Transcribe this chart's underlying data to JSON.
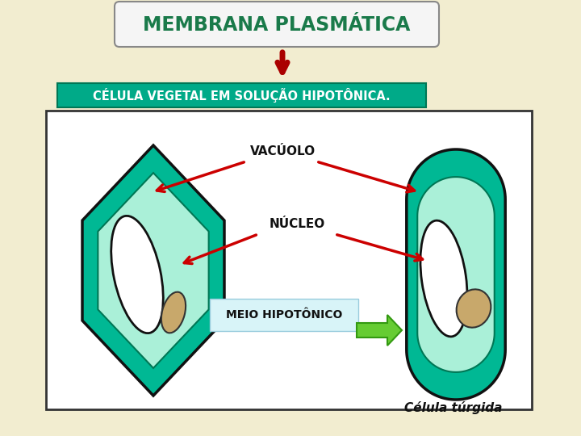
{
  "bg_color": "#F2EDD0",
  "title_text": "MEMBRANA PLASMÁTICA",
  "title_color": "#1a7a4a",
  "subtitle_text": "CÉLULA VEGETAL EM SOLUÇÃO HIPOTÔNICA.",
  "subtitle_color": "white",
  "subtitle_bg": "#00aa88",
  "panel_bg": "#ffffff",
  "panel_border": "#333333",
  "cell_outer_color": "#00b894",
  "cell_inner_color": "#aaf0d8",
  "vacuole_color": "#ffffff",
  "nucleus_color": "#C8A86B",
  "arrow_color": "#cc0000",
  "meio_arrow_color": "#55cc33",
  "meio_bg": "#d8f4f8",
  "label_vacuolo": "VACÚOLO",
  "label_nucleo": "NÚCLEO",
  "label_meio": "MEIO HIPOTÔNICO",
  "label_celula_turgida": "Célula túrgida",
  "title_box_color": "#f5f5f5",
  "title_box_border": "#888888"
}
